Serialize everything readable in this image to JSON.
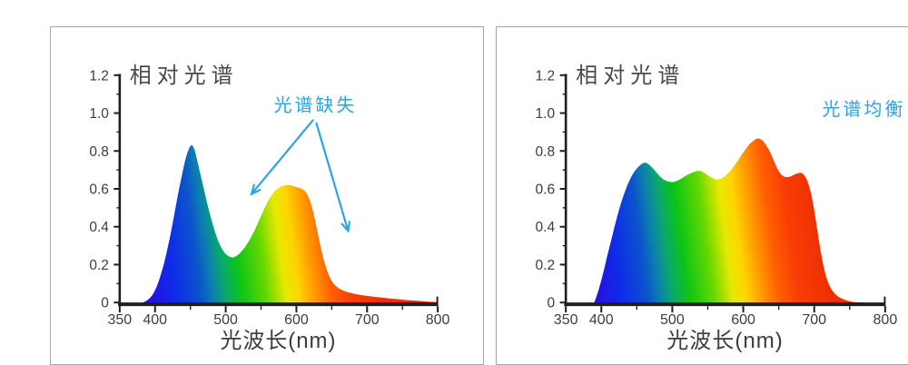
{
  "page": {
    "background": "#ffffff",
    "panel_border": "#a6a6a6",
    "panel_background": "#ffffff"
  },
  "colors": {
    "axis": "#1f1f1f",
    "tick_label": "#3d3d3d",
    "title": "#4a4a4a",
    "xlabel": "#3d3d3d",
    "annotation": "#29a3ea"
  },
  "spectrum_gradient": [
    {
      "nm": 380,
      "color": "#3a0ccc"
    },
    {
      "nm": 395,
      "color": "#2313e2"
    },
    {
      "nm": 430,
      "color": "#0f2be8"
    },
    {
      "nm": 465,
      "color": "#0b54cc"
    },
    {
      "nm": 482,
      "color": "#0b7fae"
    },
    {
      "nm": 500,
      "color": "#0aa86e"
    },
    {
      "nm": 522,
      "color": "#0cc416"
    },
    {
      "nm": 557,
      "color": "#66d800"
    },
    {
      "nm": 584,
      "color": "#e8e800"
    },
    {
      "nm": 602,
      "color": "#ffd400"
    },
    {
      "nm": 624,
      "color": "#ff9900"
    },
    {
      "nm": 648,
      "color": "#ff5e00"
    },
    {
      "nm": 675,
      "color": "#f93d05"
    },
    {
      "nm": 720,
      "color": "#ee2e02"
    },
    {
      "nm": 800,
      "color": "#e62a00"
    }
  ],
  "chart_data": [
    {
      "type": "area",
      "title": "相对光谱",
      "xlabel": "光波长(nm)",
      "ylabel": "",
      "xlim": [
        350,
        800
      ],
      "ylim": [
        0,
        1.2
      ],
      "x_major_ticks": [
        350,
        400,
        500,
        600,
        700,
        800
      ],
      "x_minor_ticks": [
        450,
        550,
        650,
        750
      ],
      "y_major_ticks": [
        0,
        0.2,
        0.4,
        0.6,
        0.8,
        1.0,
        1.2
      ],
      "y_tick_labels": [
        "0",
        "0.2",
        "0.4",
        "0.6",
        "0.8",
        "1.0",
        "1.2"
      ],
      "grid": false,
      "annotation": {
        "text": "光谱缺失",
        "x": 627,
        "y": 1.05,
        "arrows": [
          {
            "x1": 624,
            "y1": 0.965,
            "x2": 537,
            "y2": 0.575
          },
          {
            "x1": 628,
            "y1": 0.95,
            "x2": 673,
            "y2": 0.38
          }
        ]
      },
      "points": [
        [
          383,
          0
        ],
        [
          388,
          0.01
        ],
        [
          393,
          0.025
        ],
        [
          398,
          0.05
        ],
        [
          403,
          0.09
        ],
        [
          408,
          0.145
        ],
        [
          413,
          0.21
        ],
        [
          418,
          0.29
        ],
        [
          423,
          0.38
        ],
        [
          428,
          0.48
        ],
        [
          433,
          0.58
        ],
        [
          438,
          0.67
        ],
        [
          443,
          0.755
        ],
        [
          448,
          0.812
        ],
        [
          452,
          0.83
        ],
        [
          456,
          0.805
        ],
        [
          460,
          0.745
        ],
        [
          465,
          0.665
        ],
        [
          470,
          0.585
        ],
        [
          475,
          0.505
        ],
        [
          480,
          0.435
        ],
        [
          485,
          0.372
        ],
        [
          490,
          0.32
        ],
        [
          495,
          0.282
        ],
        [
          500,
          0.256
        ],
        [
          505,
          0.243
        ],
        [
          510,
          0.238
        ],
        [
          515,
          0.245
        ],
        [
          520,
          0.261
        ],
        [
          527,
          0.291
        ],
        [
          534,
          0.332
        ],
        [
          541,
          0.382
        ],
        [
          548,
          0.44
        ],
        [
          555,
          0.498
        ],
        [
          562,
          0.549
        ],
        [
          569,
          0.586
        ],
        [
          576,
          0.608
        ],
        [
          583,
          0.618
        ],
        [
          590,
          0.62
        ],
        [
          597,
          0.613
        ],
        [
          604,
          0.605
        ],
        [
          610,
          0.594
        ],
        [
          615,
          0.573
        ],
        [
          620,
          0.528
        ],
        [
          625,
          0.458
        ],
        [
          630,
          0.37
        ],
        [
          635,
          0.282
        ],
        [
          640,
          0.208
        ],
        [
          645,
          0.152
        ],
        [
          650,
          0.114
        ],
        [
          655,
          0.09
        ],
        [
          660,
          0.075
        ],
        [
          668,
          0.06
        ],
        [
          676,
          0.051
        ],
        [
          686,
          0.043
        ],
        [
          700,
          0.035
        ],
        [
          715,
          0.028
        ],
        [
          730,
          0.022
        ],
        [
          745,
          0.017
        ],
        [
          760,
          0.012
        ],
        [
          775,
          0.008
        ],
        [
          790,
          0.004
        ],
        [
          800,
          0.002
        ]
      ]
    },
    {
      "type": "area",
      "title": "相对光谱",
      "xlabel": "光波长(nm)",
      "ylabel": "",
      "xlim": [
        350,
        800
      ],
      "ylim": [
        0,
        1.2
      ],
      "x_major_ticks": [
        350,
        400,
        500,
        600,
        700,
        800
      ],
      "x_minor_ticks": [
        450,
        550,
        650,
        750
      ],
      "y_major_ticks": [
        0,
        0.2,
        0.4,
        0.6,
        0.8,
        1.0,
        1.2
      ],
      "y_tick_labels": [
        "0",
        "0.2",
        "0.4",
        "0.6",
        "0.8",
        "1.0",
        "1.2"
      ],
      "grid": false,
      "annotation": {
        "text": "光谱均衡",
        "x": 770,
        "y": 1.03,
        "arrows": []
      },
      "points": [
        [
          390,
          0
        ],
        [
          394,
          0.04
        ],
        [
          398,
          0.09
        ],
        [
          403,
          0.16
        ],
        [
          408,
          0.24
        ],
        [
          414,
          0.33
        ],
        [
          420,
          0.42
        ],
        [
          426,
          0.503
        ],
        [
          432,
          0.572
        ],
        [
          438,
          0.63
        ],
        [
          444,
          0.676
        ],
        [
          450,
          0.707
        ],
        [
          456,
          0.729
        ],
        [
          461,
          0.738
        ],
        [
          466,
          0.732
        ],
        [
          471,
          0.714
        ],
        [
          477,
          0.69
        ],
        [
          483,
          0.665
        ],
        [
          489,
          0.647
        ],
        [
          495,
          0.638
        ],
        [
          501,
          0.636
        ],
        [
          507,
          0.643
        ],
        [
          513,
          0.655
        ],
        [
          520,
          0.671
        ],
        [
          527,
          0.684
        ],
        [
          533,
          0.692
        ],
        [
          538,
          0.695
        ],
        [
          543,
          0.689
        ],
        [
          549,
          0.674
        ],
        [
          555,
          0.66
        ],
        [
          560,
          0.652
        ],
        [
          565,
          0.65
        ],
        [
          571,
          0.658
        ],
        [
          577,
          0.676
        ],
        [
          583,
          0.701
        ],
        [
          590,
          0.736
        ],
        [
          597,
          0.776
        ],
        [
          604,
          0.813
        ],
        [
          610,
          0.841
        ],
        [
          616,
          0.859
        ],
        [
          621,
          0.866
        ],
        [
          626,
          0.858
        ],
        [
          631,
          0.837
        ],
        [
          637,
          0.799
        ],
        [
          643,
          0.749
        ],
        [
          648,
          0.707
        ],
        [
          653,
          0.678
        ],
        [
          658,
          0.664
        ],
        [
          663,
          0.662
        ],
        [
          668,
          0.668
        ],
        [
          673,
          0.677
        ],
        [
          678,
          0.683
        ],
        [
          682,
          0.684
        ],
        [
          686,
          0.671
        ],
        [
          690,
          0.644
        ],
        [
          694,
          0.598
        ],
        [
          698,
          0.53
        ],
        [
          702,
          0.44
        ],
        [
          706,
          0.342
        ],
        [
          710,
          0.252
        ],
        [
          714,
          0.178
        ],
        [
          718,
          0.122
        ],
        [
          723,
          0.079
        ],
        [
          728,
          0.051
        ],
        [
          734,
          0.031
        ],
        [
          741,
          0.017
        ],
        [
          748,
          0.008
        ],
        [
          755,
          0.003
        ],
        [
          763,
          0.001
        ],
        [
          770,
          0
        ]
      ]
    }
  ]
}
